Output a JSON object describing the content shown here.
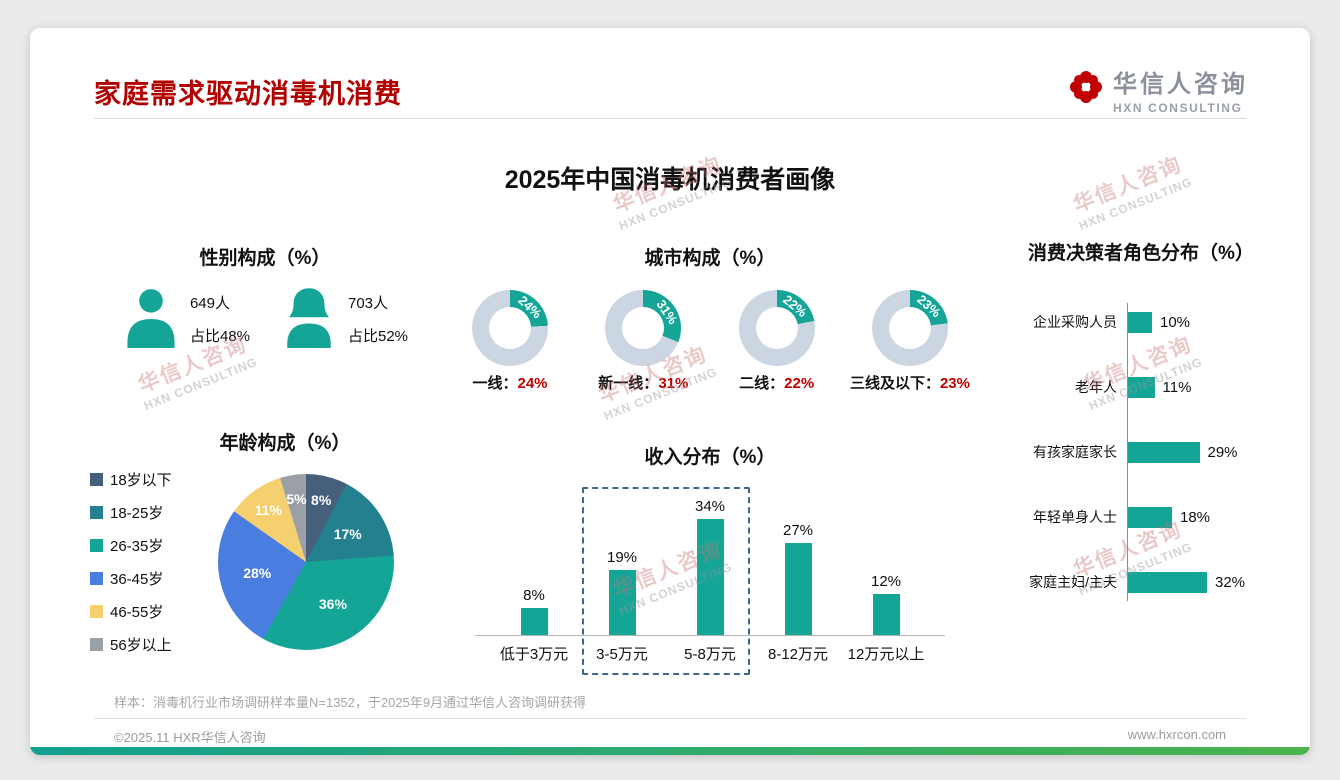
{
  "header": {
    "title": "家庭需求驱动消毒机消费"
  },
  "brand": {
    "logo_icon": "red-flower-icon",
    "name_cn": "华信人咨询",
    "name_en": "HXN CONSULTING"
  },
  "subtitle": "2025年中国消毒机消费者画像",
  "watermark": {
    "cn": "华信人咨询",
    "en": "HXN CONSULTING"
  },
  "colors": {
    "accent_red": "#b20000",
    "value_red": "#c00000",
    "teal": "#15a597",
    "donut_bg": "#ccd5e2",
    "highlight_dash": "#3f6590"
  },
  "footer": {
    "note": "样本：消毒机行业市场调研样本量N=1352，于2025年9月通过华信人咨询调研获得",
    "copyright": "©2025.11 HXR华信人咨询",
    "website": "www.hxrcon.com"
  },
  "chart_data": [
    {
      "id": "gender",
      "type": "pictogram",
      "title": "性别构成（%）",
      "items": [
        {
          "gender": "male",
          "count": "649人",
          "share": "占比48%"
        },
        {
          "gender": "female",
          "count": "703人",
          "share": "占比52%"
        }
      ]
    },
    {
      "id": "city",
      "type": "donut",
      "title": "城市构成（%）",
      "items": [
        {
          "label": "一线",
          "value": 24
        },
        {
          "label": "新一线",
          "value": 31
        },
        {
          "label": "二线",
          "value": 22
        },
        {
          "label": "三线及以下",
          "value": 23
        }
      ]
    },
    {
      "id": "age",
      "type": "pie",
      "title": "年龄构成（%）",
      "categories": [
        "18岁以下",
        "18-25岁",
        "26-35岁",
        "36-45岁",
        "46-55岁",
        "56岁以上"
      ],
      "values": [
        8,
        17,
        36,
        28,
        11,
        5
      ],
      "colors": [
        "#46607c",
        "#22808f",
        "#15a597",
        "#4a7de0",
        "#f6d06e",
        "#9aa0a6"
      ]
    },
    {
      "id": "income",
      "type": "bar",
      "title": "收入分布（%）",
      "categories": [
        "低于3万元",
        "3-5万元",
        "5-8万元",
        "8-12万元",
        "12万元以上"
      ],
      "values": [
        8,
        19,
        34,
        27,
        12
      ],
      "highlight_range": [
        1,
        2
      ]
    },
    {
      "id": "roles",
      "type": "hbar",
      "title": "消费决策者角色分布（%）",
      "categories": [
        "企业采购人员",
        "老年人",
        "有孩家庭家长",
        "年轻单身人士",
        "家庭主妇/主夫"
      ],
      "values": [
        10,
        11,
        29,
        18,
        32
      ]
    }
  ]
}
